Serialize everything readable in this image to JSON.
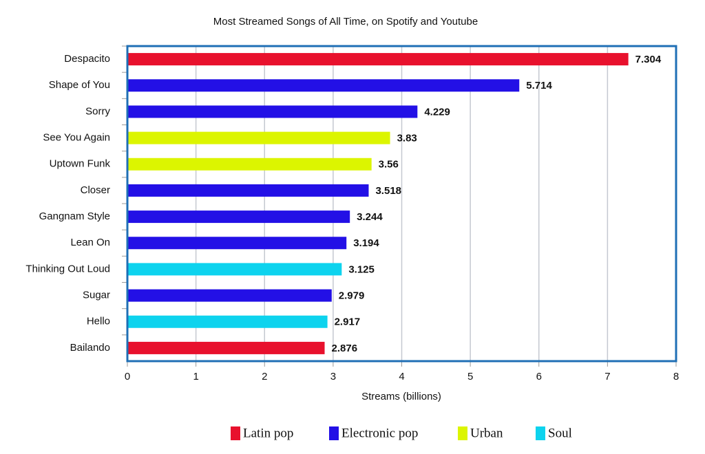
{
  "chart_data": {
    "type": "bar",
    "orientation": "horizontal",
    "title": "Most Streamed Songs of All Time, on Spotify and Youtube",
    "x_label": "Streams (billions)",
    "categories": [
      "Despacito",
      "Shape of You",
      "Sorry",
      "See You Again",
      "Uptown Funk",
      "Closer",
      "Gangnam Style",
      "Lean On",
      "Thinking Out Loud",
      "Sugar",
      "Hello",
      "Bailando"
    ],
    "series": [
      {
        "name": "Latin pop",
        "color": "#e8112d",
        "values": [
          7.304,
          null,
          null,
          null,
          null,
          null,
          null,
          null,
          null,
          null,
          null,
          2.876
        ]
      },
      {
        "name": "Electronic pop",
        "color": "#2310e6",
        "values": [
          null,
          5.714,
          4.229,
          null,
          null,
          3.518,
          3.244,
          3.194,
          null,
          2.979,
          null,
          null
        ]
      },
      {
        "name": "Urban",
        "color": "#dcf500",
        "values": [
          null,
          null,
          null,
          3.83,
          3.56,
          null,
          null,
          null,
          null,
          null,
          null,
          null
        ]
      },
      {
        "name": "Soul",
        "color": "#0dd3ee",
        "values": [
          null,
          null,
          null,
          null,
          null,
          null,
          null,
          null,
          3.125,
          null,
          2.917,
          null
        ]
      }
    ],
    "xlim": [
      0,
      8
    ],
    "xticks": [
      0,
      1,
      2,
      3,
      4,
      5,
      6,
      7,
      8
    ],
    "grid": true,
    "legend": "bottom"
  }
}
